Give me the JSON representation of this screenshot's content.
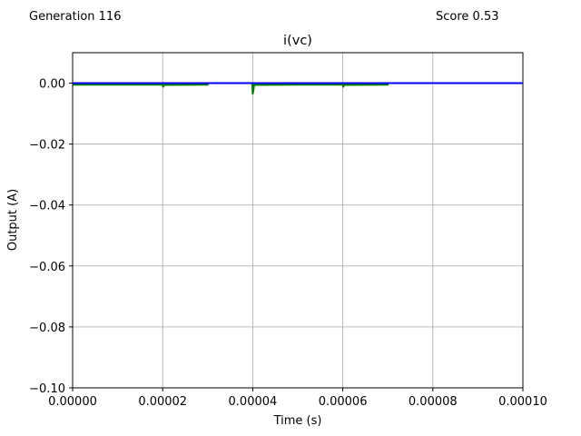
{
  "header": {
    "generation": "Generation 116",
    "score": "Score 0.53"
  },
  "chart_data": {
    "type": "line",
    "title": "i(vc)",
    "xlabel": "Time (s)",
    "ylabel": "Output (A)",
    "xlim": [
      0,
      0.0001
    ],
    "ylim": [
      -0.1,
      0.01
    ],
    "x_ticks": [
      "0.00000",
      "0.00002",
      "0.00004",
      "0.00006",
      "0.00008",
      "0.00010"
    ],
    "x_tick_values": [
      0,
      2e-05,
      4e-05,
      6e-05,
      8e-05,
      0.0001
    ],
    "y_ticks": [
      "0.00",
      "−0.02",
      "−0.04",
      "−0.06",
      "−0.08",
      "−0.10"
    ],
    "y_tick_values": [
      0,
      -0.02,
      -0.04,
      -0.06,
      -0.08,
      -0.1
    ],
    "grid": true,
    "series": [
      {
        "color": "#008000",
        "x": [
          0,
          2e-05,
          2.01e-05,
          2.03e-05,
          3e-05,
          3.01e-05,
          3.99e-05,
          4e-05,
          4.01e-05,
          4.03e-05,
          5e-05,
          6e-05,
          6.01e-05,
          6.03e-05,
          7e-05,
          7.01e-05,
          0.0001
        ],
        "y": [
          -0.0005,
          -0.0005,
          -0.0012,
          -0.0006,
          -0.0005,
          0,
          0,
          -0.0035,
          -0.0028,
          -0.0006,
          -0.0005,
          -0.0005,
          -0.0012,
          -0.0006,
          -0.0005,
          0,
          0
        ]
      },
      {
        "color": "#0000ff",
        "x": [
          0,
          0.0001
        ],
        "y": [
          0,
          0
        ]
      }
    ]
  }
}
